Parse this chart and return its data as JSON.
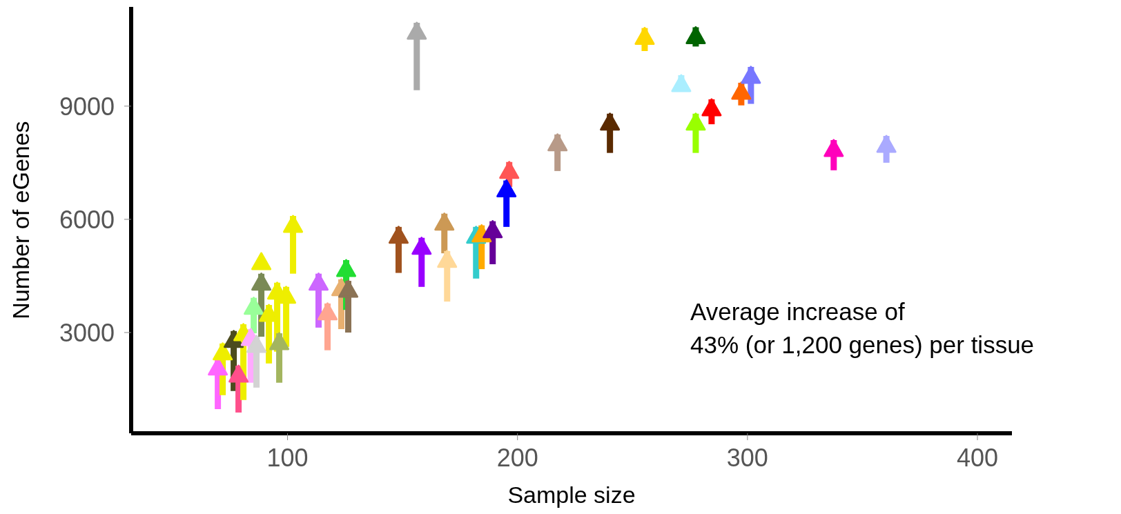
{
  "chart_data": {
    "type": "scatter",
    "xlabel": "Sample size",
    "ylabel": "Number of eGenes",
    "marker": "triangle",
    "annotations": [
      "Average increase of\n43% (or 1,200 genes) per tissue"
    ],
    "x": [
      69.7,
      71.8,
      76.6,
      78.7,
      80.8,
      84,
      85.3,
      86.5,
      88.6,
      88.6,
      91.9,
      95.5,
      96.4,
      99.4,
      102.4,
      113.5,
      117.4,
      123.4,
      125.5,
      126.4,
      148.3,
      156.2,
      158.3,
      168.2,
      169.4,
      182,
      184.4,
      189.2,
      195.2,
      196.4,
      217.4,
      240.2,
      255.3,
      271.2,
      277.5,
      277.5,
      284.4,
      297.3,
      301.5,
      337.5,
      360.4
    ],
    "values": [
      2100,
      2500,
      2830,
      1910,
      3010,
      2880,
      3710,
      2700,
      4890,
      4350,
      3520,
      4110,
      2770,
      4000,
      5880,
      4350,
      3560,
      4200,
      4710,
      4160,
      5590,
      11000,
      5300,
      5940,
      4950,
      5590,
      5630,
      5740,
      6820,
      7310,
      8040,
      8590,
      10860,
      9610,
      10880,
      8590,
      8970,
      9410,
      9830,
      7890,
      8000
    ],
    "errors": [
      [
        970,
        2310
      ],
      [
        1340,
        2710
      ],
      [
        1450,
        3040
      ],
      [
        880,
        2120
      ],
      [
        1210,
        3220
      ],
      [
        1670,
        3090
      ],
      [
        2980,
        3920
      ],
      [
        1540,
        2910
      ],
      null,
      [
        2890,
        4560
      ],
      [
        2180,
        3730
      ],
      [
        2490,
        4320
      ],
      [
        1670,
        2980
      ],
      [
        2620,
        4210
      ],
      [
        4560,
        6090
      ],
      [
        3130,
        4560
      ],
      [
        2530,
        3770
      ],
      [
        3090,
        4410
      ],
      [
        3600,
        4920
      ],
      [
        3000,
        4370
      ],
      [
        4580,
        5800
      ],
      [
        9420,
        11210
      ],
      [
        4210,
        5510
      ],
      [
        5100,
        6150
      ],
      [
        3820,
        5160
      ],
      [
        4430,
        5800
      ],
      [
        4680,
        5840
      ],
      [
        4810,
        5950
      ],
      [
        5800,
        7030
      ],
      [
        6860,
        7520
      ],
      [
        7280,
        8250
      ],
      [
        7760,
        8800
      ],
      [
        10460,
        11070
      ],
      [
        9390,
        9820
      ],
      [
        10580,
        11090
      ],
      [
        7760,
        8800
      ],
      [
        8520,
        9180
      ],
      [
        9020,
        9620
      ],
      [
        9060,
        10040
      ],
      [
        7300,
        8100
      ],
      [
        7500,
        8210
      ]
    ],
    "colors": [
      "#ff66ff",
      "#eeee00",
      "#4b4b1e",
      "#ff4f8b",
      "#eeee00",
      "#ffaaff",
      "#99ff99",
      "#d3d3d3",
      "#eeee00",
      "#7a8a55",
      "#eeee00",
      "#eeee00",
      "#a3b55f",
      "#eeee00",
      "#eeee00",
      "#cc66ff",
      "#ffa590",
      "#e8b070",
      "#22dd33",
      "#8b7355",
      "#a0521e",
      "#aaaaaa",
      "#9900ff",
      "#cc9955",
      "#ffd898",
      "#33cccc",
      "#ffaa00",
      "#660099",
      "#0000ff",
      "#ff5555",
      "#b89a88",
      "#5a2a00",
      "#ffd700",
      "#aaeeff",
      "#006400",
      "#99ff00",
      "#ff0000",
      "#ff6600",
      "#7777ff",
      "#ff00bb",
      "#aaaaff"
    ],
    "xlim": [
      32,
      415
    ],
    "xticks": [
      100,
      200,
      300,
      400
    ],
    "ylim": [
      330,
      11630
    ],
    "yticks": [
      3000,
      6000,
      9000
    ]
  }
}
